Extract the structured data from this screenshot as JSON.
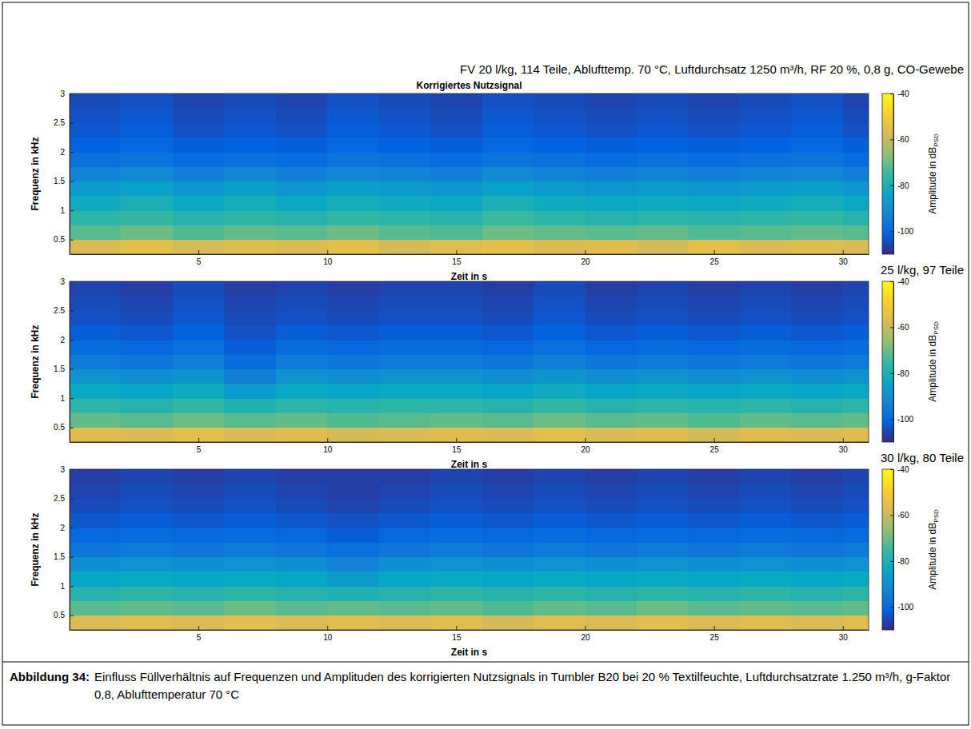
{
  "chart_data": [
    {
      "type": "heatmap",
      "title": "Korrigiertes Nutzsignal",
      "subtitle": "FV 20 l/kg, 114 Teile, Ablufttemp. 70 °C, Luftdurchsatz 1250 m³/h, RF 20 %, 0,8 g, CO-Gewebe",
      "x_label": "Zeit in s",
      "y_label": "Frequenz in kHz",
      "xlim": [
        0,
        31
      ],
      "ylim": [
        0.25,
        3
      ],
      "xticks": [
        5,
        10,
        15,
        20,
        25,
        30
      ],
      "yticks": [
        0.5,
        1,
        1.5,
        2,
        2.5,
        3
      ],
      "x_edges": [
        0,
        2,
        4,
        6,
        8,
        10,
        12,
        14,
        16,
        18,
        20,
        22,
        24,
        26,
        28,
        30,
        31
      ],
      "y_edges": [
        0.25,
        0.5,
        0.75,
        1,
        1.25,
        1.5,
        1.75,
        2,
        2.25,
        2.5,
        2.75,
        3
      ],
      "cells": [
        [
          -57,
          -55,
          -58,
          -56,
          -57,
          -55,
          -58,
          -56,
          -55,
          -57,
          -56,
          -58,
          -55,
          -57,
          -56,
          -57
        ],
        [
          -72,
          -70,
          -73,
          -71,
          -72,
          -70,
          -72,
          -73,
          -70,
          -71,
          -72,
          -71,
          -73,
          -72,
          -71,
          -72
        ],
        [
          -77,
          -76,
          -78,
          -77,
          -78,
          -76,
          -77,
          -78,
          -75,
          -77,
          -78,
          -77,
          -78,
          -77,
          -76,
          -78
        ],
        [
          -82,
          -80,
          -83,
          -81,
          -83,
          -81,
          -82,
          -83,
          -80,
          -82,
          -83,
          -82,
          -83,
          -82,
          -81,
          -83
        ],
        [
          -87,
          -85,
          -88,
          -86,
          -88,
          -86,
          -87,
          -88,
          -85,
          -87,
          -88,
          -87,
          -88,
          -87,
          -86,
          -88
        ],
        [
          -93,
          -91,
          -94,
          -92,
          -94,
          -92,
          -93,
          -94,
          -91,
          -93,
          -94,
          -93,
          -94,
          -93,
          -92,
          -94
        ],
        [
          -98,
          -97,
          -99,
          -98,
          -99,
          -97,
          -98,
          -99,
          -97,
          -98,
          -99,
          -98,
          -99,
          -98,
          -97,
          -99
        ],
        [
          -101,
          -100,
          -102,
          -101,
          -102,
          -100,
          -101,
          -102,
          -100,
          -101,
          -102,
          -101,
          -102,
          -101,
          -100,
          -102
        ],
        [
          -103,
          -102,
          -104,
          -103,
          -104,
          -102,
          -103,
          -104,
          -102,
          -103,
          -104,
          -103,
          -104,
          -103,
          -102,
          -104
        ],
        [
          -104,
          -103,
          -105,
          -104,
          -105,
          -103,
          -104,
          -105,
          -103,
          -104,
          -105,
          -104,
          -105,
          -104,
          -103,
          -105
        ],
        [
          -105,
          -104,
          -106,
          -105,
          -106,
          -104,
          -105,
          -106,
          -104,
          -105,
          -106,
          -105,
          -106,
          -105,
          -104,
          -106
        ]
      ],
      "colorbar_lim": [
        -110,
        -40
      ],
      "colorbar_ticks": [
        -40,
        -60,
        -80,
        -100
      ],
      "colorbar_title": "Amplitude in dB",
      "colorbar_title_subscript": "PSD"
    },
    {
      "type": "heatmap",
      "subtitle": "25 l/kg, 97 Teile",
      "x_label": "Zeit in s",
      "y_label": "Frequenz in kHz",
      "xlim": [
        0,
        31
      ],
      "ylim": [
        0.25,
        3
      ],
      "xticks": [
        5,
        10,
        15,
        20,
        25,
        30
      ],
      "yticks": [
        0.5,
        1,
        1.5,
        2,
        2.5,
        3
      ],
      "x_edges": [
        0,
        2,
        4,
        6,
        8,
        10,
        12,
        14,
        16,
        18,
        20,
        22,
        24,
        26,
        28,
        30,
        31
      ],
      "y_edges": [
        0.25,
        0.5,
        0.75,
        1,
        1.25,
        1.5,
        1.75,
        2,
        2.25,
        2.5,
        2.75,
        3
      ],
      "cells": [
        [
          -56,
          -57,
          -55,
          -57,
          -56,
          -58,
          -57,
          -56,
          -57,
          -55,
          -57,
          -56,
          -58,
          -56,
          -57,
          -56
        ],
        [
          -71,
          -72,
          -70,
          -72,
          -71,
          -73,
          -72,
          -71,
          -72,
          -70,
          -72,
          -71,
          -73,
          -71,
          -72,
          -71
        ],
        [
          -77,
          -78,
          -76,
          -79,
          -77,
          -78,
          -77,
          -77,
          -78,
          -76,
          -78,
          -77,
          -78,
          -77,
          -78,
          -77
        ],
        [
          -83,
          -84,
          -82,
          -87,
          -83,
          -84,
          -83,
          -83,
          -84,
          -82,
          -84,
          -83,
          -84,
          -83,
          -84,
          -83
        ],
        [
          -89,
          -90,
          -88,
          -94,
          -89,
          -90,
          -89,
          -89,
          -90,
          -88,
          -90,
          -89,
          -90,
          -89,
          -90,
          -89
        ],
        [
          -95,
          -96,
          -94,
          -99,
          -95,
          -96,
          -95,
          -95,
          -96,
          -94,
          -96,
          -95,
          -96,
          -95,
          -96,
          -95
        ],
        [
          -99,
          -100,
          -98,
          -102,
          -99,
          -100,
          -99,
          -99,
          -100,
          -98,
          -100,
          -99,
          -100,
          -99,
          -100,
          -99
        ],
        [
          -102,
          -103,
          -101,
          -104,
          -102,
          -103,
          -102,
          -102,
          -103,
          -101,
          -103,
          -102,
          -103,
          -102,
          -103,
          -102
        ],
        [
          -104,
          -105,
          -103,
          -105,
          -104,
          -105,
          -104,
          -104,
          -105,
          -103,
          -105,
          -104,
          -105,
          -104,
          -105,
          -104
        ],
        [
          -105,
          -106,
          -104,
          -106,
          -105,
          -106,
          -105,
          -105,
          -106,
          -104,
          -106,
          -105,
          -106,
          -105,
          -106,
          -105
        ],
        [
          -106,
          -107,
          -105,
          -107,
          -106,
          -107,
          -106,
          -106,
          -107,
          -105,
          -107,
          -106,
          -107,
          -106,
          -107,
          -106
        ]
      ],
      "colorbar_lim": [
        -110,
        -40
      ],
      "colorbar_ticks": [
        -40,
        -60,
        -80,
        -100
      ],
      "colorbar_title": "Amplitude in dB",
      "colorbar_title_subscript": "PSD"
    },
    {
      "type": "heatmap",
      "subtitle": "30 l/kg, 80 Teile",
      "x_label": "Zeit in s",
      "y_label": "Frequenz in kHz",
      "xlim": [
        0,
        31
      ],
      "ylim": [
        0.25,
        3
      ],
      "xticks": [
        5,
        10,
        15,
        20,
        25,
        30
      ],
      "yticks": [
        0.5,
        1,
        1.5,
        2,
        2.5,
        3
      ],
      "x_edges": [
        0,
        2,
        4,
        6,
        8,
        10,
        12,
        14,
        16,
        18,
        20,
        22,
        24,
        26,
        28,
        30,
        31
      ],
      "y_edges": [
        0.25,
        0.5,
        0.75,
        1,
        1.25,
        1.5,
        1.75,
        2,
        2.25,
        2.5,
        2.75,
        3
      ],
      "cells": [
        [
          -57,
          -56,
          -57,
          -55,
          -57,
          -56,
          -57,
          -56,
          -58,
          -56,
          -57,
          -55,
          -57,
          -56,
          -57,
          -56
        ],
        [
          -72,
          -71,
          -72,
          -70,
          -72,
          -71,
          -72,
          -71,
          -73,
          -71,
          -72,
          -70,
          -72,
          -71,
          -72,
          -71
        ],
        [
          -78,
          -77,
          -78,
          -77,
          -78,
          -79,
          -78,
          -77,
          -78,
          -77,
          -78,
          -77,
          -78,
          -77,
          -78,
          -77
        ],
        [
          -84,
          -83,
          -84,
          -83,
          -84,
          -87,
          -84,
          -83,
          -84,
          -83,
          -84,
          -83,
          -84,
          -83,
          -84,
          -83
        ],
        [
          -90,
          -89,
          -90,
          -89,
          -90,
          -93,
          -90,
          -89,
          -90,
          -89,
          -90,
          -89,
          -90,
          -89,
          -90,
          -89
        ],
        [
          -96,
          -95,
          -96,
          -95,
          -96,
          -98,
          -96,
          -95,
          -96,
          -95,
          -96,
          -95,
          -96,
          -95,
          -96,
          -95
        ],
        [
          -100,
          -99,
          -100,
          -99,
          -100,
          -102,
          -100,
          -99,
          -100,
          -99,
          -100,
          -99,
          -100,
          -99,
          -100,
          -99
        ],
        [
          -103,
          -102,
          -103,
          -102,
          -103,
          -104,
          -103,
          -102,
          -103,
          -102,
          -103,
          -102,
          -103,
          -102,
          -103,
          -102
        ],
        [
          -105,
          -104,
          -105,
          -104,
          -105,
          -106,
          -105,
          -104,
          -105,
          -104,
          -105,
          -104,
          -105,
          -104,
          -105,
          -104
        ],
        [
          -106,
          -105,
          -106,
          -105,
          -106,
          -107,
          -106,
          -105,
          -106,
          -105,
          -106,
          -105,
          -106,
          -105,
          -106,
          -105
        ],
        [
          -107,
          -106,
          -107,
          -106,
          -107,
          -107,
          -107,
          -106,
          -107,
          -106,
          -107,
          -106,
          -107,
          -106,
          -107,
          -106
        ]
      ],
      "colorbar_lim": [
        -110,
        -40
      ],
      "colorbar_ticks": [
        -40,
        -60,
        -80,
        -100
      ],
      "colorbar_title": "Amplitude in dB",
      "colorbar_title_subscript": "PSD"
    }
  ],
  "figure": {
    "caption_label": "Abbildung 34:",
    "caption": "Einfluss Füllverhältnis auf Frequenzen und Amplituden des korrigierten Nutzsignals in Tumbler B20 bei 20 % Textilfeuchte, Luftdurchsatzrate 1.250 m³/h, g-Faktor 0,8, Ablufttemperatur 70 °C"
  }
}
